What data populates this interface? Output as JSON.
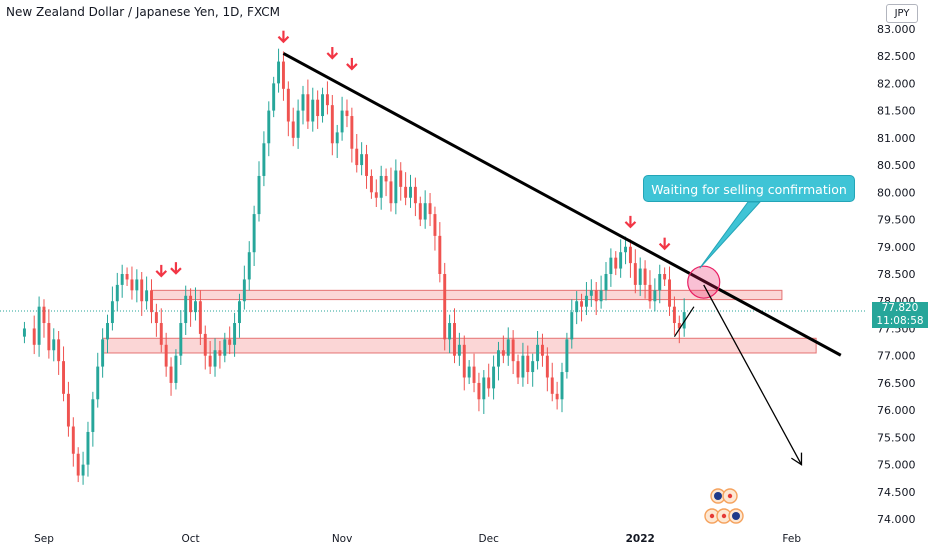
{
  "header": {
    "title": "New Zealand Dollar / Japanese Yen, 1D, FXCM",
    "currency": "JPY"
  },
  "annotations": {
    "callout_text": "Waiting for selling confirmation"
  },
  "price_tag": {
    "price": "77.820",
    "countdown": "11:08:58"
  },
  "colors": {
    "up": "#26a69a",
    "down": "#ef5350",
    "zone_fill": "#fbd6d6",
    "zone_border": "#e57373",
    "trendline": "#000000",
    "callout_bg": "#3fc4d6",
    "arrow_marker": "#f23645"
  },
  "chart_data": {
    "type": "candlestick",
    "title": "New Zealand Dollar / Japanese Yen, 1D, FXCM",
    "y_axis": {
      "unit": "JPY",
      "range": [
        73.8,
        83.2
      ],
      "ticks": [
        "83.000",
        "82.500",
        "82.000",
        "81.500",
        "81.000",
        "80.500",
        "80.000",
        "79.500",
        "79.000",
        "78.500",
        "78.000",
        "77.500",
        "77.000",
        "76.500",
        "76.000",
        "75.500",
        "75.000",
        "74.500",
        "74.000"
      ]
    },
    "x_axis": {
      "ticks": [
        {
          "label": "Sep",
          "day": 4,
          "bold": false
        },
        {
          "label": "Oct",
          "day": 34,
          "bold": false
        },
        {
          "label": "Nov",
          "day": 65,
          "bold": false
        },
        {
          "label": "Dec",
          "day": 95,
          "bold": false
        },
        {
          "label": "2022",
          "day": 126,
          "bold": true
        },
        {
          "label": "Feb",
          "day": 157,
          "bold": false
        }
      ],
      "range_days": [
        -5,
        172
      ]
    },
    "current_price": 77.82,
    "closes": [
      [
        0,
        77.5
      ],
      [
        2,
        77.2
      ],
      [
        3,
        77.9
      ],
      [
        4,
        77.6
      ],
      [
        5,
        77.1
      ],
      [
        6,
        77.3
      ],
      [
        7,
        76.9
      ],
      [
        8,
        76.3
      ],
      [
        9,
        75.7
      ],
      [
        10,
        75.2
      ],
      [
        11,
        74.8
      ],
      [
        12,
        75.0
      ],
      [
        13,
        75.6
      ],
      [
        14,
        76.2
      ],
      [
        15,
        76.8
      ],
      [
        16,
        77.3
      ],
      [
        17,
        77.6
      ],
      [
        18,
        78.0
      ],
      [
        19,
        78.3
      ],
      [
        20,
        78.5
      ],
      [
        21,
        78.4
      ],
      [
        22,
        78.2
      ],
      [
        23,
        78.4
      ],
      [
        24,
        78.0
      ],
      [
        25,
        78.2
      ],
      [
        26,
        77.8
      ],
      [
        27,
        77.6
      ],
      [
        28,
        77.2
      ],
      [
        29,
        76.8
      ],
      [
        30,
        76.5
      ],
      [
        31,
        77.0
      ],
      [
        32,
        77.6
      ],
      [
        33,
        78.1
      ],
      [
        34,
        77.8
      ],
      [
        35,
        78.0
      ],
      [
        36,
        77.4
      ],
      [
        37,
        77.0
      ],
      [
        38,
        76.8
      ],
      [
        39,
        77.1
      ],
      [
        40,
        77.0
      ],
      [
        41,
        77.3
      ],
      [
        42,
        77.2
      ],
      [
        43,
        77.6
      ],
      [
        44,
        78.0
      ],
      [
        45,
        78.4
      ],
      [
        46,
        78.9
      ],
      [
        47,
        79.6
      ],
      [
        48,
        80.3
      ],
      [
        49,
        80.9
      ],
      [
        50,
        81.5
      ],
      [
        51,
        82.0
      ],
      [
        52,
        82.4
      ],
      [
        53,
        81.9
      ],
      [
        54,
        81.3
      ],
      [
        55,
        81.0
      ],
      [
        56,
        81.5
      ],
      [
        57,
        81.8
      ],
      [
        58,
        81.3
      ],
      [
        59,
        81.7
      ],
      [
        60,
        81.4
      ],
      [
        61,
        81.8
      ],
      [
        62,
        81.6
      ],
      [
        63,
        80.9
      ],
      [
        64,
        81.1
      ],
      [
        65,
        81.5
      ],
      [
        66,
        81.4
      ],
      [
        67,
        80.8
      ],
      [
        68,
        80.5
      ],
      [
        69,
        80.7
      ],
      [
        70,
        80.3
      ],
      [
        71,
        80.0
      ],
      [
        72,
        79.9
      ],
      [
        73,
        80.3
      ],
      [
        74,
        80.2
      ],
      [
        75,
        79.8
      ],
      [
        76,
        80.4
      ],
      [
        77,
        80.1
      ],
      [
        78,
        79.9
      ],
      [
        79,
        80.1
      ],
      [
        80,
        79.8
      ],
      [
        81,
        79.5
      ],
      [
        82,
        79.8
      ],
      [
        83,
        79.6
      ],
      [
        84,
        79.2
      ],
      [
        85,
        78.5
      ],
      [
        86,
        77.3
      ],
      [
        87,
        77.6
      ],
      [
        88,
        77.0
      ],
      [
        89,
        77.2
      ],
      [
        90,
        76.6
      ],
      [
        91,
        76.8
      ],
      [
        92,
        76.5
      ],
      [
        93,
        76.2
      ],
      [
        94,
        76.6
      ],
      [
        95,
        76.4
      ],
      [
        96,
        76.8
      ],
      [
        97,
        77.1
      ],
      [
        98,
        77.0
      ],
      [
        99,
        77.3
      ],
      [
        100,
        76.9
      ],
      [
        101,
        76.6
      ],
      [
        102,
        77.0
      ],
      [
        103,
        76.7
      ],
      [
        104,
        76.9
      ],
      [
        105,
        77.2
      ],
      [
        106,
        77.0
      ],
      [
        107,
        76.6
      ],
      [
        108,
        76.3
      ],
      [
        109,
        76.2
      ],
      [
        110,
        76.7
      ],
      [
        111,
        77.3
      ],
      [
        112,
        77.8
      ],
      [
        113,
        78.0
      ],
      [
        114,
        77.9
      ],
      [
        115,
        78.1
      ],
      [
        116,
        78.2
      ],
      [
        117,
        78.0
      ],
      [
        118,
        78.2
      ],
      [
        119,
        78.5
      ],
      [
        120,
        78.8
      ],
      [
        121,
        78.6
      ],
      [
        122,
        78.9
      ],
      [
        123,
        79.0
      ],
      [
        124,
        78.7
      ],
      [
        125,
        78.3
      ],
      [
        126,
        78.6
      ],
      [
        127,
        78.3
      ],
      [
        128,
        78.0
      ],
      [
        129,
        78.2
      ],
      [
        130,
        78.5
      ],
      [
        131,
        78.4
      ],
      [
        132,
        77.9
      ],
      [
        133,
        77.6
      ],
      [
        134,
        77.5
      ],
      [
        135,
        77.8
      ]
    ],
    "resistance_zones": [
      {
        "day_start": 26,
        "day_end": 155,
        "price_low": 78.03,
        "price_high": 78.2
      },
      {
        "day_start": 16,
        "day_end": 162,
        "price_low": 77.05,
        "price_high": 77.32
      }
    ],
    "trendline": {
      "start": [
        53,
        82.55
      ],
      "end": [
        165,
        77.1
      ]
    },
    "small_trend_up": {
      "start": [
        133,
        77.35
      ],
      "end": [
        137,
        77.9
      ]
    },
    "projection_arrow": {
      "start": [
        139,
        78.3
      ],
      "end": [
        159,
        75.0
      ]
    },
    "marked_circle": {
      "day": 139,
      "price": 78.35
    },
    "top_markers": [
      {
        "day": 53,
        "price": 82.6
      },
      {
        "day": 63,
        "price": 82.3
      },
      {
        "day": 67,
        "price": 82.1
      },
      {
        "day": 28,
        "price": 78.3
      },
      {
        "day": 31,
        "price": 78.35
      },
      {
        "day": 124,
        "price": 79.2
      },
      {
        "day": 131,
        "price": 78.8
      }
    ]
  }
}
